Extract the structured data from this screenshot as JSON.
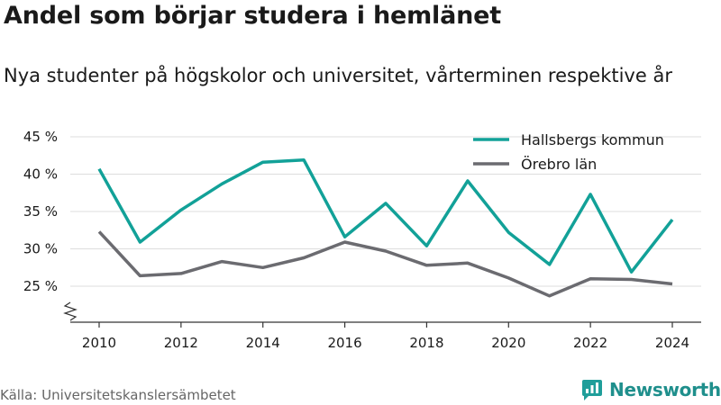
{
  "title": "Andel som börjar studera i hemlänet",
  "subtitle": "Nya studenter på högskolor och universitet, vårterminen respektive år",
  "source": "Källa: Universitetskanslersämbetet",
  "brand": {
    "name": "Newsworthy",
    "icon": "newsworthy-logo-icon",
    "color": "#1f9e9a"
  },
  "colors": {
    "hallsberg": "#12a198",
    "orebro": "#6b6b70",
    "grid": "#dddddd"
  },
  "chart_data": {
    "type": "line",
    "title": "Andel som börjar studera i hemlänet",
    "subtitle": "Nya studenter på högskolor och universitet, vårterminen respektive år",
    "x": [
      2010,
      2011,
      2012,
      2013,
      2014,
      2015,
      2016,
      2017,
      2018,
      2019,
      2020,
      2021,
      2022,
      2023,
      2024
    ],
    "series": [
      {
        "name": "Hallsbergs kommun",
        "values": [
          40.7,
          30.9,
          35.2,
          38.7,
          41.6,
          41.9,
          31.6,
          36.1,
          30.4,
          39.1,
          32.2,
          27.9,
          37.3,
          26.9,
          33.9
        ]
      },
      {
        "name": "Örebro län",
        "values": [
          32.3,
          26.4,
          26.7,
          28.3,
          27.5,
          28.8,
          30.9,
          29.7,
          27.8,
          28.1,
          26.1,
          23.7,
          26.0,
          25.9,
          25.3
        ]
      }
    ],
    "x_ticks": [
      2010,
      2012,
      2014,
      2016,
      2018,
      2020,
      2022,
      2024
    ],
    "x_tick_labels": [
      "2010",
      "2012",
      "2014",
      "2016",
      "2018",
      "2020",
      "2022",
      "2024"
    ],
    "y_ticks": [
      25,
      30,
      35,
      40,
      45
    ],
    "y_tick_labels": [
      "25 %",
      "30 %",
      "35 %",
      "40 %",
      "45 %"
    ],
    "xlim": [
      2010,
      2024
    ],
    "ylim": [
      20,
      45
    ],
    "y_axis_break": true,
    "grid": "horizontal",
    "legend_position": "top-right"
  }
}
